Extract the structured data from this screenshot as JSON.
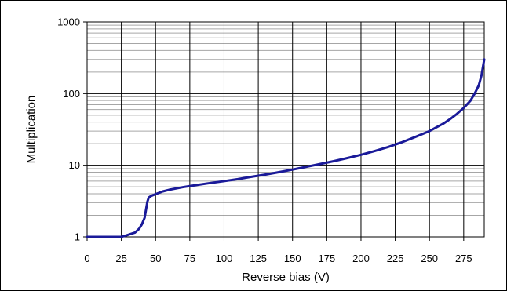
{
  "chart_data": {
    "type": "line",
    "xlabel": "Reverse bias (V)",
    "ylabel": "Multiplication",
    "x_scale": "linear",
    "y_scale": "log",
    "xlim": [
      0,
      290
    ],
    "ylim": [
      1,
      1000
    ],
    "x_ticks": [
      "0",
      "25",
      "50",
      "75",
      "100",
      "125",
      "150",
      "175",
      "200",
      "225",
      "250",
      "275"
    ],
    "y_ticks": [
      "1",
      "10",
      "100",
      "1000"
    ],
    "grid": {
      "x_major": true,
      "y_major": true,
      "y_minor": true
    },
    "legend": "none",
    "series": [
      {
        "color": "#1a1a99",
        "x": [
          0,
          10,
          20,
          25,
          30,
          35,
          38,
          40,
          42,
          43,
          44,
          45,
          47,
          50,
          55,
          60,
          70,
          80,
          90,
          100,
          110,
          120,
          130,
          140,
          150,
          160,
          170,
          180,
          190,
          200,
          210,
          220,
          230,
          240,
          250,
          260,
          265,
          270,
          275,
          280,
          283,
          286,
          288,
          290
        ],
        "y": [
          1,
          1,
          1,
          1,
          1.07,
          1.15,
          1.3,
          1.5,
          1.85,
          2.4,
          3.1,
          3.55,
          3.75,
          3.95,
          4.3,
          4.55,
          4.95,
          5.3,
          5.65,
          6.0,
          6.4,
          6.9,
          7.4,
          8.0,
          8.7,
          9.5,
          10.4,
          11.4,
          12.6,
          14.0,
          15.8,
          18.0,
          21.0,
          25.0,
          30.0,
          38.0,
          44.0,
          52.0,
          63.0,
          80.0,
          100.0,
          130.0,
          180.0,
          300.0
        ]
      }
    ]
  }
}
